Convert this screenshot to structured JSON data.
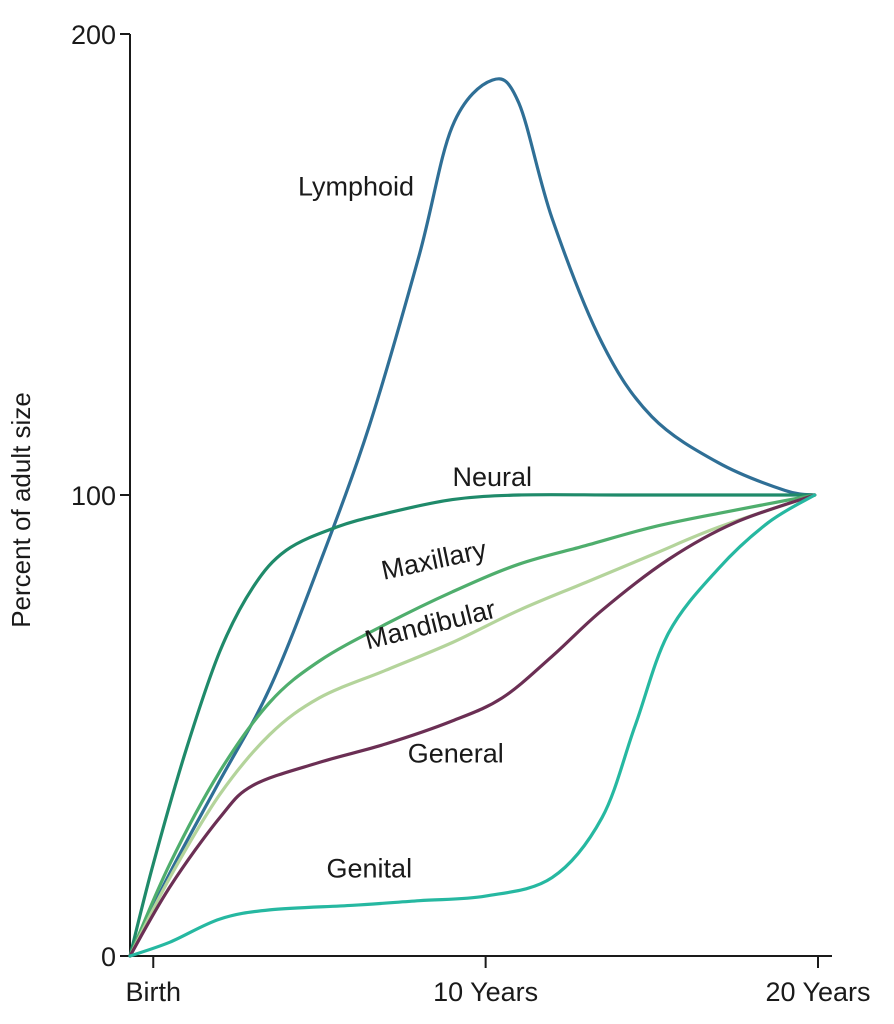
{
  "chart_data": {
    "type": "line",
    "ylabel": "Percent of adult size",
    "xlabel": "",
    "xlim": [
      -0.7,
      20
    ],
    "ylim": [
      0,
      200
    ],
    "x_ticks": [
      {
        "value": 0,
        "label": "Birth"
      },
      {
        "value": 10,
        "label": "10 Years"
      },
      {
        "value": 20,
        "label": "20 Years"
      }
    ],
    "y_ticks": [
      {
        "value": 0,
        "label": "0"
      },
      {
        "value": 100,
        "label": "100"
      },
      {
        "value": 200,
        "label": "200"
      }
    ],
    "grid": false,
    "legend": "none (curves labeled directly)",
    "series": [
      {
        "name": "Lymphoid",
        "color": "#2f6f96",
        "points": [
          [
            -0.7,
            0
          ],
          [
            0.5,
            18
          ],
          [
            2,
            38
          ],
          [
            3.5,
            58
          ],
          [
            5,
            85
          ],
          [
            6.5,
            115
          ],
          [
            8,
            152
          ],
          [
            9,
            180
          ],
          [
            10.2,
            190
          ],
          [
            11,
            185
          ],
          [
            12,
            160
          ],
          [
            13.5,
            133
          ],
          [
            15,
            117
          ],
          [
            17,
            107
          ],
          [
            19,
            101
          ],
          [
            19.9,
            100
          ]
        ]
      },
      {
        "name": "Neural",
        "color": "#1f8a6a",
        "points": [
          [
            -0.7,
            0
          ],
          [
            0,
            20
          ],
          [
            1,
            45
          ],
          [
            2,
            66
          ],
          [
            3,
            80
          ],
          [
            4,
            88
          ],
          [
            5.5,
            93
          ],
          [
            7,
            96
          ],
          [
            9,
            99
          ],
          [
            11,
            100
          ],
          [
            14,
            100
          ],
          [
            17,
            100
          ],
          [
            19.9,
            100
          ]
        ]
      },
      {
        "name": "Maxillary",
        "color": "#4fae6d",
        "points": [
          [
            -0.7,
            0
          ],
          [
            0.5,
            20
          ],
          [
            2,
            40
          ],
          [
            3.5,
            55
          ],
          [
            5,
            64
          ],
          [
            7,
            72
          ],
          [
            9,
            79
          ],
          [
            11,
            85
          ],
          [
            13,
            89
          ],
          [
            15,
            93
          ],
          [
            17,
            96
          ],
          [
            19.9,
            100
          ]
        ]
      },
      {
        "name": "Mandibular",
        "color": "#b4d49b",
        "points": [
          [
            -0.7,
            0
          ],
          [
            0.5,
            17
          ],
          [
            2,
            35
          ],
          [
            3.5,
            48
          ],
          [
            5,
            56
          ],
          [
            7,
            62
          ],
          [
            9,
            68
          ],
          [
            11,
            75
          ],
          [
            13,
            81
          ],
          [
            15,
            87
          ],
          [
            17,
            93
          ],
          [
            19.9,
            100
          ]
        ]
      },
      {
        "name": "General",
        "color": "#6b2f54",
        "points": [
          [
            -0.7,
            0
          ],
          [
            0.5,
            15
          ],
          [
            2,
            30
          ],
          [
            3,
            37
          ],
          [
            5,
            42
          ],
          [
            7,
            46
          ],
          [
            9,
            51
          ],
          [
            10.5,
            56
          ],
          [
            12,
            65
          ],
          [
            13.5,
            75
          ],
          [
            15.5,
            86
          ],
          [
            17.5,
            94
          ],
          [
            19.9,
            100
          ]
        ]
      },
      {
        "name": "Genital",
        "color": "#26b8a1",
        "points": [
          [
            -0.7,
            0
          ],
          [
            0.5,
            3
          ],
          [
            2,
            8
          ],
          [
            3.5,
            10
          ],
          [
            6,
            11
          ],
          [
            8,
            12
          ],
          [
            10,
            13
          ],
          [
            12,
            17
          ],
          [
            13.5,
            30
          ],
          [
            14.5,
            50
          ],
          [
            15.5,
            70
          ],
          [
            17,
            84
          ],
          [
            18.5,
            94
          ],
          [
            19.9,
            100
          ]
        ]
      }
    ],
    "annotations": [
      {
        "text": "Lymphoid",
        "x": 6.1,
        "y": 165,
        "rotate": 0
      },
      {
        "text": "Neural",
        "x": 10.2,
        "y": 102,
        "rotate": 0
      },
      {
        "text": "Maxillary",
        "x": 8.5,
        "y": 84,
        "rotate": -12
      },
      {
        "text": "Mandibular",
        "x": 8.4,
        "y": 70,
        "rotate": -14
      },
      {
        "text": "General",
        "x": 9.1,
        "y": 42,
        "rotate": 0
      },
      {
        "text": "Genital",
        "x": 6.5,
        "y": 17,
        "rotate": 0
      }
    ]
  }
}
